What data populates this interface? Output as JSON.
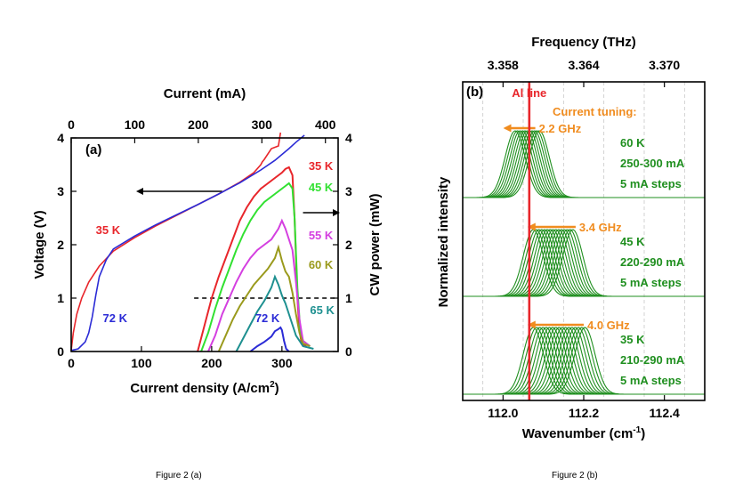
{
  "captions": {
    "a": "Figure 2 (a)",
    "b": "Figure 2 (b)"
  },
  "chart_data": [
    {
      "type": "line",
      "panel_label": "(a)",
      "xlabel": "Current density",
      "xlabel_unit": "(A/cm",
      "xlabel_sup": "2",
      "xlabel_close": ")",
      "xlim": [
        0,
        380
      ],
      "xticks": [
        0,
        100,
        200,
        300
      ],
      "top_xlabel": "Current (mA)",
      "top_xlim": [
        0,
        420
      ],
      "top_xticks": [
        0,
        100,
        200,
        300,
        400
      ],
      "ylabel": "Voltage (V)",
      "ylim": [
        0,
        4
      ],
      "yticks": [
        0,
        1,
        2,
        3,
        4
      ],
      "right_ylabel": "CW power (mW)",
      "right_ylim": [
        0,
        4
      ],
      "right_yticks": [
        0,
        1,
        2,
        3,
        4
      ],
      "reference_line": {
        "y": 1,
        "x_from": 175,
        "x_to": 380,
        "style": "dashed"
      },
      "arrows": [
        {
          "direction": "left",
          "axis": "voltage",
          "y": 3.0,
          "x_from": 215,
          "x_to": 95
        },
        {
          "direction": "right",
          "axis": "power",
          "y": 2.6,
          "x_from": 330,
          "x_to": 380
        }
      ],
      "voltage_series": [
        {
          "name": "35 K",
          "label_at": [
            35,
            2.2
          ],
          "color": "#e8262b",
          "x": [
            0,
            3,
            8,
            15,
            25,
            40,
            60,
            90,
            120,
            150,
            180,
            210,
            240,
            260,
            270,
            272,
            275,
            285,
            295,
            298
          ],
          "y": [
            0.02,
            0.35,
            0.7,
            1.0,
            1.3,
            1.6,
            1.88,
            2.13,
            2.35,
            2.55,
            2.75,
            2.95,
            3.17,
            3.35,
            3.5,
            3.55,
            3.6,
            3.8,
            3.85,
            4.1
          ]
        },
        {
          "name": "72 K",
          "label_at": [
            45,
            0.55
          ],
          "color": "#2b2bd6",
          "x": [
            0,
            10,
            20,
            25,
            30,
            35,
            40,
            50,
            60,
            90,
            120,
            150,
            180,
            210,
            240,
            270,
            290,
            310,
            320,
            332
          ],
          "y": [
            0.02,
            0.05,
            0.18,
            0.35,
            0.65,
            1.05,
            1.4,
            1.72,
            1.92,
            2.16,
            2.37,
            2.56,
            2.75,
            2.95,
            3.16,
            3.4,
            3.58,
            3.8,
            3.92,
            4.05
          ]
        }
      ],
      "power_series": [
        {
          "name": "35 K",
          "color": "#e8262b",
          "label_at": [
            338,
            3.4
          ],
          "x": [
            180,
            190,
            200,
            210,
            220,
            230,
            240,
            250,
            260,
            270,
            280,
            290,
            300,
            305,
            310,
            315,
            318,
            322,
            325,
            328,
            335
          ],
          "y": [
            0,
            0.5,
            1.0,
            1.4,
            1.75,
            2.1,
            2.45,
            2.7,
            2.9,
            3.05,
            3.15,
            3.25,
            3.35,
            3.42,
            3.45,
            3.3,
            2.5,
            1.0,
            0.4,
            0.15,
            0.1
          ]
        },
        {
          "name": "45 K",
          "color": "#31e131",
          "label_at": [
            338,
            3.0
          ],
          "x": [
            185,
            195,
            205,
            215,
            225,
            235,
            245,
            255,
            265,
            275,
            285,
            295,
            305,
            310,
            315,
            318,
            322,
            326,
            330,
            340
          ],
          "y": [
            0,
            0.35,
            0.8,
            1.2,
            1.55,
            1.9,
            2.2,
            2.45,
            2.65,
            2.8,
            2.9,
            3.0,
            3.1,
            3.15,
            3.05,
            2.5,
            1.2,
            0.4,
            0.2,
            0.1
          ]
        },
        {
          "name": "55 K",
          "color": "#d43fe0",
          "label_at": [
            338,
            2.1
          ],
          "x": [
            195,
            205,
            215,
            225,
            235,
            245,
            255,
            265,
            275,
            285,
            295,
            300,
            305,
            310,
            315,
            320,
            325,
            330,
            340
          ],
          "y": [
            0,
            0.3,
            0.7,
            1.0,
            1.3,
            1.55,
            1.75,
            1.9,
            2.0,
            2.1,
            2.3,
            2.45,
            2.3,
            2.1,
            1.9,
            1.3,
            0.6,
            0.2,
            0.1
          ]
        },
        {
          "name": "60 K",
          "color": "#9a9a1c",
          "label_at": [
            338,
            1.55
          ],
          "x": [
            210,
            220,
            230,
            240,
            250,
            260,
            270,
            280,
            290,
            295,
            300,
            305,
            310,
            315,
            320,
            325,
            330,
            340
          ],
          "y": [
            0,
            0.3,
            0.6,
            0.85,
            1.05,
            1.25,
            1.4,
            1.55,
            1.75,
            1.95,
            1.7,
            1.5,
            1.4,
            1.1,
            0.7,
            0.35,
            0.15,
            0.1
          ]
        },
        {
          "name": "65 K",
          "color": "#1e9090",
          "label_at": [
            340,
            0.7
          ],
          "x": [
            235,
            245,
            255,
            265,
            275,
            285,
            290,
            295,
            300,
            305,
            310,
            315,
            320,
            325,
            330,
            345
          ],
          "y": [
            0,
            0.25,
            0.5,
            0.75,
            0.95,
            1.2,
            1.4,
            1.25,
            1.05,
            0.9,
            0.7,
            0.5,
            0.3,
            0.2,
            0.1,
            0.05
          ]
        },
        {
          "name": "72 K",
          "color": "#2b2bd6",
          "label_at": [
            262,
            0.55
          ],
          "x": [
            255,
            265,
            275,
            285,
            290,
            295,
            298,
            300,
            303,
            306,
            310
          ],
          "y": [
            0,
            0.1,
            0.18,
            0.28,
            0.38,
            0.42,
            0.45,
            0.4,
            0.2,
            0.05,
            0
          ]
        }
      ]
    },
    {
      "type": "line",
      "panel_label": "(b)",
      "xlabel": "Wavenumber",
      "xlabel_unit": "(cm",
      "xlabel_sup": "-1",
      "xlabel_close": ")",
      "xlim": [
        111.9,
        112.5
      ],
      "xticks": [
        112.0,
        112.2,
        112.4
      ],
      "tick_labels": [
        "112.0",
        "112.2",
        "112.4"
      ],
      "top_xlabel": "Frequency (THz)",
      "top_xticks": [
        3.358,
        3.364,
        3.37
      ],
      "top_tick_labels": [
        "3.358",
        "3.364",
        "3.370"
      ],
      "top_tick_positions": [
        112.0,
        112.2,
        112.4
      ],
      "ylabel": "Normalized intensity",
      "al_line": {
        "label": "Al line",
        "x": 112.065,
        "color": "#e8262b"
      },
      "current_tuning_label": "Current tuning:",
      "tuning_color": "#f08c1f",
      "series_color": "#1f8f1f",
      "groups": [
        {
          "temperature": "60 K",
          "current_range": "250-300 mA",
          "step": "5 mA steps",
          "shift": "2.2 GHz",
          "arrow_from": 112.08,
          "arrow_to": 112.005,
          "curve_count": 11,
          "centers": [
            112.03,
            112.036,
            112.042,
            112.048,
            112.054,
            112.06,
            112.066,
            112.072,
            112.078,
            112.084,
            112.09
          ],
          "width": 0.035
        },
        {
          "temperature": "45 K",
          "current_range": "220-290 mA",
          "step": "5 mA steps",
          "shift": "3.4 GHz",
          "arrow_from": 112.18,
          "arrow_to": 112.065,
          "curve_count": 15,
          "centers": [
            112.075,
            112.082,
            112.089,
            112.096,
            112.103,
            112.11,
            112.117,
            112.124,
            112.131,
            112.138,
            112.145,
            112.152,
            112.159,
            112.166,
            112.173
          ],
          "width": 0.035
        },
        {
          "temperature": "35 K",
          "current_range": "210-290 mA",
          "step": "5 mA steps",
          "shift": "4.0 GHz",
          "arrow_from": 112.2,
          "arrow_to": 112.065,
          "curve_count": 17,
          "centers": [
            112.075,
            112.083,
            112.091,
            112.099,
            112.107,
            112.115,
            112.123,
            112.131,
            112.139,
            112.147,
            112.155,
            112.163,
            112.171,
            112.179,
            112.187,
            112.195,
            112.203
          ],
          "width": 0.035
        }
      ],
      "grid_lines": [
        111.95,
        112.05,
        112.15,
        112.25,
        112.35,
        112.45
      ]
    }
  ]
}
